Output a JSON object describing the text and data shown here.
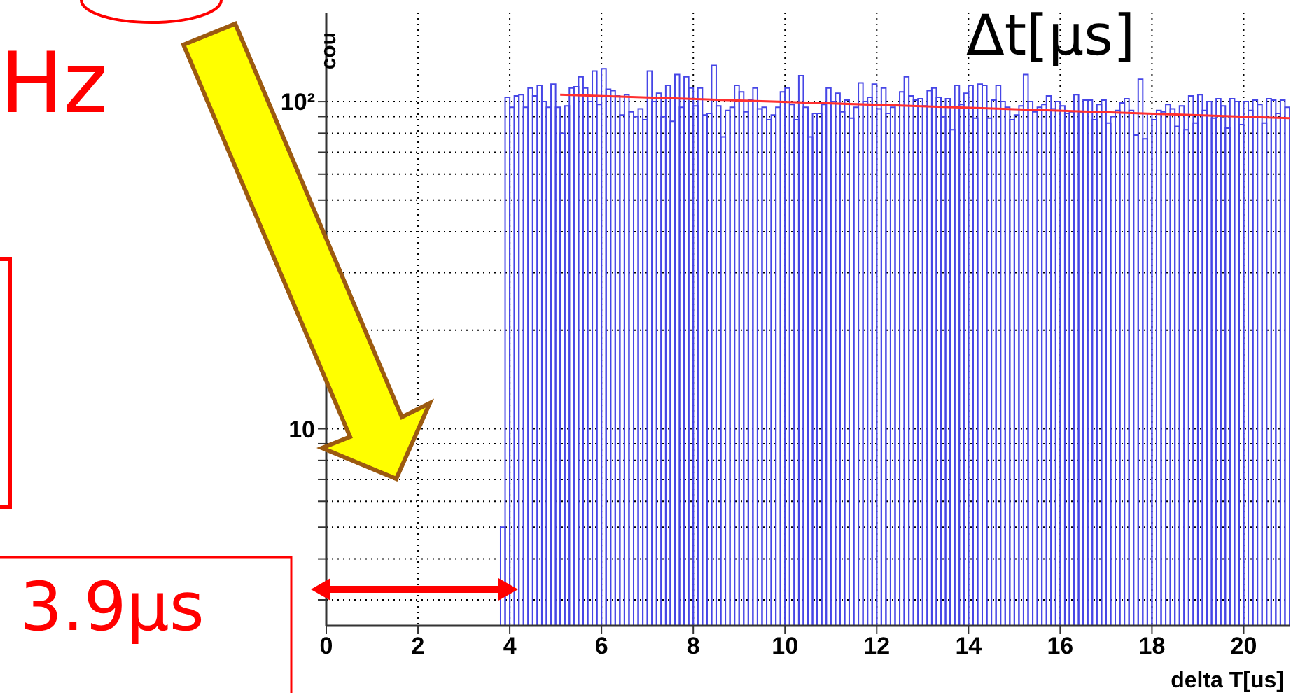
{
  "chart_data": {
    "type": "histogram",
    "xlabel": "delta T[us]",
    "ylabel": "cou",
    "annotations": [
      "Hz",
      "3.9μs",
      "Δt[μs]"
    ],
    "xlim": [
      0,
      21
    ],
    "xticks": [
      0,
      2,
      4,
      6,
      8,
      10,
      12,
      14,
      16,
      18,
      20
    ],
    "ylim": [
      2.5,
      187
    ],
    "yticks": [
      {
        "value": 3,
        "label": null
      },
      {
        "value": 4,
        "label": null
      },
      {
        "value": 5,
        "label": null
      },
      {
        "value": 6,
        "label": null
      },
      {
        "value": 7,
        "label": null
      },
      {
        "value": 8,
        "label": null
      },
      {
        "value": 9,
        "label": null
      },
      10,
      {
        "value": 20,
        "label": null
      },
      {
        "value": 30,
        "label": null
      },
      {
        "value": 40,
        "label": null
      },
      {
        "value": 50,
        "label": null
      },
      {
        "value": 60,
        "label": null
      },
      {
        "value": 70,
        "label": null
      },
      {
        "value": 80,
        "label": null
      },
      {
        "value": 90,
        "label": null
      },
      {
        "value": 100,
        "label": "10²"
      }
    ],
    "log": "y",
    "grid": true,
    "series": [
      {
        "color": "#4646e6",
        "bins": [
          3.8,
          3.9,
          4,
          4.1,
          4.2,
          4.3,
          4.4,
          4.5,
          4.6,
          4.7,
          4.8,
          4.9,
          5,
          5.1,
          5.2,
          5.3,
          5.4,
          5.5,
          5.6,
          5.7,
          5.8,
          5.9,
          6,
          6.1,
          6.2,
          6.3,
          6.4,
          6.5,
          6.6,
          6.7,
          6.8,
          6.9,
          7,
          7.1,
          7.2,
          7.3,
          7.4,
          7.5,
          7.6,
          7.7,
          7.8,
          7.9,
          8,
          8.1,
          8.2,
          8.3,
          8.4,
          8.5,
          8.6,
          8.7,
          8.8,
          8.9,
          9,
          9.1,
          9.2,
          9.3,
          9.4,
          9.5,
          9.6,
          9.7,
          9.8,
          9.9,
          10,
          10.1,
          10.2,
          10.3,
          10.4,
          10.5,
          10.6,
          10.7,
          10.8,
          10.9,
          11,
          11.1,
          11.2,
          11.3,
          11.4,
          11.5,
          11.6,
          11.7,
          11.8,
          11.9,
          12,
          12.1,
          12.2,
          12.3,
          12.4,
          12.5,
          12.6,
          12.7,
          12.8,
          12.9,
          13,
          13.1,
          13.2,
          13.3,
          13.4,
          13.5,
          13.6,
          13.7,
          13.8,
          13.9,
          14,
          14.1,
          14.2,
          14.3,
          14.4,
          14.5,
          14.6,
          14.7,
          14.8,
          14.9,
          15,
          15.1,
          15.2,
          15.3,
          15.4,
          15.5,
          15.6,
          15.7,
          15.8,
          15.9,
          16,
          16.1,
          16.2,
          16.3,
          16.4,
          16.5,
          16.6,
          16.7,
          16.8,
          16.9,
          17,
          17.1,
          17.2,
          17.3,
          17.4,
          17.5,
          17.6,
          17.7,
          17.8,
          17.9,
          18,
          18.1,
          18.2,
          18.3,
          18.4,
          18.5,
          18.6,
          18.7,
          18.8,
          18.9,
          19,
          19.1,
          19.2,
          19.3,
          19.4,
          19.5,
          19.6,
          19.7,
          19.8,
          19.9,
          20,
          20.1,
          20.2,
          20.3,
          20.4,
          20.5,
          20.6,
          20.7,
          20.8,
          20.9,
          21
        ],
        "values": [
          5,
          103,
          96,
          104,
          105,
          96,
          110,
          104,
          112,
          100,
          96,
          113,
          96,
          80,
          97,
          110,
          111,
          119,
          110,
          100,
          124,
          98,
          126,
          109,
          108,
          104,
          91,
          105,
          93,
          90,
          95,
          88,
          124,
          100,
          106,
          90,
          112,
          87,
          121,
          96,
          119,
          110,
          97,
          110,
          91,
          92,
          129,
          97,
          78,
          94,
          96,
          112,
          107,
          93,
          101,
          110,
          95,
          96,
          88,
          91,
          96,
          107,
          110,
          98,
          88,
          120,
          96,
          78,
          92,
          92,
          98,
          110,
          100,
          106,
          93,
          101,
          89,
          96,
          114,
          100,
          103,
          113,
          95,
          110,
          92,
          96,
          98,
          107,
          119,
          104,
          101,
          102,
          97,
          108,
          110,
          103,
          90,
          102,
          82,
          112,
          98,
          106,
          112,
          89,
          113,
          112,
          89,
          101,
          112,
          100,
          96,
          88,
          91,
          97,
          121,
          100,
          93,
          96,
          98,
          104,
          95,
          100,
          97,
          92,
          93,
          105,
          93,
          101,
          101,
          88,
          98,
          101,
          86,
          90,
          94,
          99,
          102,
          94,
          79,
          117,
          77,
          92,
          88,
          94,
          93,
          98,
          95,
          84,
          97,
          82,
          104,
          86,
          105,
          94,
          100,
          89,
          102,
          97,
          83,
          102,
          100,
          85,
          100,
          94,
          101,
          98,
          86,
          102,
          101,
          92,
          101,
          96
        ]
      },
      {
        "type": "line",
        "color": "#ff3030",
        "x": [
          5.1,
          21
        ],
        "values": [
          105,
          89
        ]
      }
    ]
  }
}
